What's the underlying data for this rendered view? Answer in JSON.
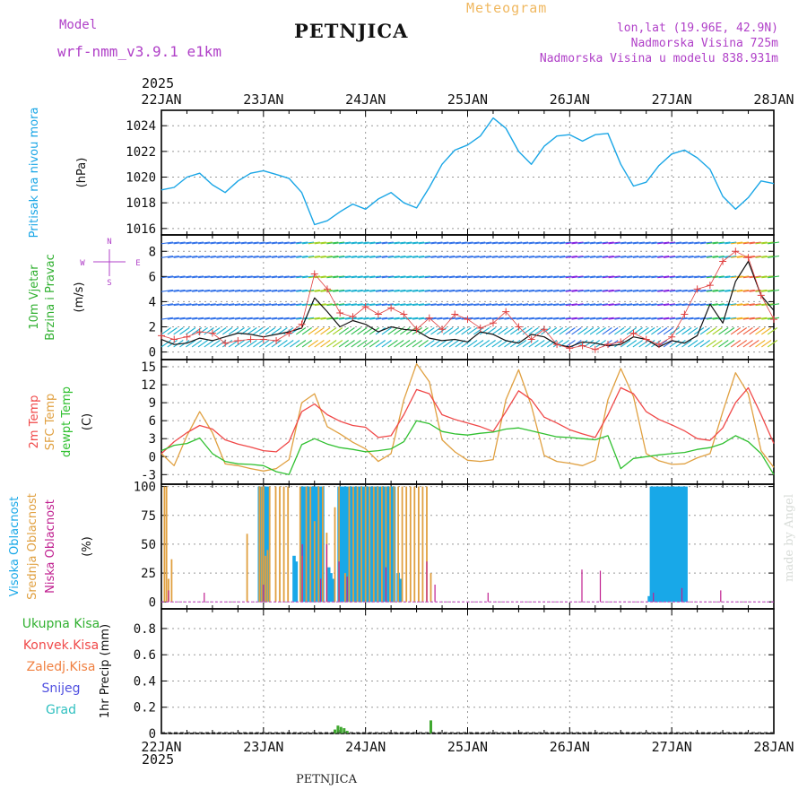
{
  "header": {
    "model_label": "Model",
    "model_name": "wrf-nmm_v3.9.1  e1km",
    "station": "PETNJICA",
    "meteogram": "Meteogram",
    "lonlat": "lon,lat (19.96E, 42.9N)",
    "altitude": "Nadmorska Visina 725m",
    "model_altitude": "Nadmorska Visina u modelu 838.931m",
    "year": "2025",
    "footer_station": "PETNJICA",
    "credit": "made by Angel"
  },
  "colors": {
    "pressure": "#1aa6e6",
    "temp2m": "#f04848",
    "sfc_temp": "#e0a040",
    "dewpoint": "#30c030",
    "high_cloud": "#18a8e8",
    "mid_cloud": "#e0a040",
    "low_cloud": "#c02090",
    "precip_total": "#40a830",
    "wind_speed": "#111111",
    "wind_obs": "#e04040"
  },
  "chart_data": [
    {
      "type": "line",
      "panel": "pressure",
      "ylabel": [
        "Pritisak na nivou mora",
        "(hPa)"
      ],
      "ylabel_colors": [
        "#1aa6e6",
        "#111111"
      ],
      "ylim": [
        1015.5,
        1025.2
      ],
      "yticks": [
        1016,
        1018,
        1020,
        1022,
        1024
      ],
      "x_days": [
        0,
        0.125,
        0.25,
        0.375,
        0.5,
        0.625,
        0.75,
        0.875,
        1.0,
        1.125,
        1.25,
        1.375,
        1.5,
        1.625,
        1.75,
        1.875,
        2.0,
        2.125,
        2.25,
        2.375,
        2.5,
        2.625,
        2.75,
        2.875,
        3.0,
        3.125,
        3.25,
        3.375,
        3.5,
        3.625,
        3.75,
        3.875,
        4.0,
        4.125,
        4.25,
        4.375,
        4.5,
        4.625,
        4.75,
        4.875,
        5.0,
        5.125,
        5.25,
        5.375,
        5.5,
        5.625,
        5.75,
        5.875,
        6.0
      ],
      "series": [
        {
          "values": [
            1019.0,
            1019.2,
            1020.0,
            1020.3,
            1019.4,
            1018.8,
            1019.7,
            1020.3,
            1020.5,
            1020.2,
            1019.9,
            1018.8,
            1016.3,
            1016.6,
            1017.3,
            1017.9,
            1017.5,
            1018.3,
            1018.8,
            1018.0,
            1017.6,
            1019.2,
            1021.0,
            1022.1,
            1022.5,
            1023.2,
            1024.6,
            1023.8,
            1022.0,
            1021.0,
            1022.4,
            1023.2,
            1023.3,
            1022.8,
            1023.3,
            1023.4,
            1021.0,
            1019.3,
            1019.6,
            1020.9,
            1021.8,
            1022.1,
            1021.5,
            1020.6,
            1018.5,
            1017.5,
            1018.4,
            1019.7,
            1019.5
          ]
        }
      ]
    },
    {
      "type": "line",
      "panel": "wind",
      "ylabel": [
        "10m Vjetar",
        "Brzina i Pravac",
        "(m/s)"
      ],
      "ylabel_colors": [
        "#30b030",
        "#30b030",
        "#111111"
      ],
      "compass": [
        "N",
        "S",
        "W",
        "E"
      ],
      "ylim": [
        -0.6,
        9.3
      ],
      "yticks": [
        0,
        2,
        4,
        6,
        8
      ],
      "x_days": [
        0,
        0.125,
        0.25,
        0.375,
        0.5,
        0.625,
        0.75,
        0.875,
        1.0,
        1.125,
        1.25,
        1.375,
        1.5,
        1.625,
        1.75,
        1.875,
        2.0,
        2.125,
        2.25,
        2.375,
        2.5,
        2.625,
        2.75,
        2.875,
        3.0,
        3.125,
        3.25,
        3.375,
        3.5,
        3.625,
        3.75,
        3.875,
        4.0,
        4.125,
        4.25,
        4.375,
        4.5,
        4.625,
        4.75,
        4.875,
        5.0,
        5.125,
        5.25,
        5.375,
        5.5,
        5.625,
        5.75,
        5.875,
        6.0
      ],
      "series": [
        {
          "name": "speed",
          "values": [
            1.0,
            0.6,
            0.7,
            1.1,
            0.9,
            1.2,
            1.5,
            1.4,
            1.2,
            1.4,
            1.6,
            1.9,
            4.3,
            3.2,
            2.0,
            2.5,
            2.2,
            1.6,
            2.0,
            1.8,
            1.7,
            1.1,
            0.9,
            1.0,
            0.8,
            1.6,
            1.4,
            0.9,
            0.7,
            1.4,
            1.2,
            0.6,
            0.4,
            0.8,
            0.7,
            0.5,
            0.6,
            1.2,
            1.0,
            0.4,
            0.9,
            0.7,
            1.3,
            3.8,
            2.3,
            5.6,
            7.2,
            4.5,
            3.3
          ]
        },
        {
          "name": "gust",
          "values": [
            1.3,
            1.0,
            1.2,
            1.6,
            1.5,
            0.7,
            0.9,
            1.0,
            1.0,
            0.9,
            1.5,
            2.2,
            6.2,
            5.0,
            3.1,
            2.8,
            3.6,
            3.0,
            3.5,
            3.0,
            1.8,
            2.7,
            1.8,
            3.0,
            2.6,
            1.9,
            2.3,
            3.2,
            2.0,
            1.0,
            1.8,
            0.6,
            0.3,
            0.5,
            0.2,
            0.6,
            0.8,
            1.5,
            1.0,
            0.6,
            1.2,
            3.0,
            5.0,
            5.3,
            7.2,
            8.0,
            7.5,
            4.5,
            2.6
          ]
        }
      ]
    },
    {
      "type": "line",
      "panel": "temperature",
      "ylabel": [
        "2m Temp",
        "SFC Temp",
        "dewpt Temp",
        "(C)"
      ],
      "ylabel_colors": [
        "#f04848",
        "#e0a040",
        "#30c030",
        "#111111"
      ],
      "ylim": [
        -4.6,
        16.2
      ],
      "yticks": [
        -3,
        0,
        3,
        6,
        9,
        12,
        15
      ],
      "x_days": [
        0,
        0.125,
        0.25,
        0.375,
        0.5,
        0.625,
        0.75,
        0.875,
        1.0,
        1.125,
        1.25,
        1.375,
        1.5,
        1.625,
        1.75,
        1.875,
        2.0,
        2.125,
        2.25,
        2.375,
        2.5,
        2.625,
        2.75,
        2.875,
        3.0,
        3.125,
        3.25,
        3.375,
        3.5,
        3.625,
        3.75,
        3.875,
        4.0,
        4.125,
        4.25,
        4.375,
        4.5,
        4.625,
        4.75,
        4.875,
        5.0,
        5.125,
        5.25,
        5.375,
        5.5,
        5.625,
        5.75,
        5.875,
        6.0
      ],
      "series": [
        {
          "name": "2m Temp",
          "values": [
            0.5,
            2.5,
            4.0,
            5.2,
            4.6,
            2.8,
            2.1,
            1.6,
            1.0,
            0.8,
            2.5,
            7.5,
            8.8,
            7.0,
            5.9,
            5.2,
            4.9,
            3.2,
            3.5,
            7.0,
            11.2,
            10.5,
            7.0,
            6.2,
            5.6,
            5.0,
            4.2,
            7.5,
            11.0,
            9.5,
            6.6,
            5.6,
            4.5,
            3.8,
            3.2,
            7.0,
            11.5,
            10.5,
            7.5,
            6.2,
            5.3,
            4.3,
            3.0,
            2.7,
            4.8,
            9.0,
            11.5,
            7.0,
            2.2
          ]
        },
        {
          "name": "SFC Temp",
          "values": [
            0.5,
            -1.5,
            3.5,
            7.5,
            4.0,
            -1.2,
            -1.5,
            -2.0,
            -2.4,
            -2.0,
            -0.5,
            9.0,
            10.5,
            5.0,
            3.8,
            2.4,
            1.3,
            -0.8,
            0.5,
            9.5,
            15.5,
            12.5,
            2.8,
            0.8,
            -0.6,
            -0.8,
            -0.5,
            9.5,
            14.5,
            8.5,
            0.2,
            -0.8,
            -1.1,
            -1.5,
            -0.6,
            9.5,
            14.7,
            10.0,
            0.5,
            -0.7,
            -1.3,
            -1.2,
            -0.2,
            0.5,
            7.5,
            14.0,
            10.5,
            1.0,
            -1.8
          ]
        },
        {
          "name": "dewpt Temp",
          "values": [
            1.0,
            1.9,
            2.2,
            3.1,
            0.5,
            -0.8,
            -1.2,
            -1.3,
            -1.5,
            -2.5,
            -3.0,
            2.0,
            3.0,
            2.1,
            1.5,
            1.2,
            0.8,
            1.0,
            1.3,
            2.5,
            6.0,
            5.5,
            4.2,
            3.8,
            3.6,
            3.9,
            4.1,
            4.6,
            4.8,
            4.3,
            3.8,
            3.3,
            3.2,
            3.0,
            2.8,
            3.5,
            -2.0,
            -0.3,
            0.0,
            0.3,
            0.5,
            0.7,
            1.2,
            1.5,
            2.2,
            3.5,
            2.5,
            0.5,
            -3.0
          ]
        }
      ]
    },
    {
      "type": "bar",
      "panel": "cloud",
      "ylabel": [
        "Visoka Oblacnost",
        "Srednja Oblacnost",
        "Niska Oblacnost",
        "(%)"
      ],
      "ylabel_colors": [
        "#18a8e8",
        "#e0a040",
        "#c02090",
        "#111111"
      ],
      "ylim": [
        -6,
        102
      ],
      "yticks": [
        0,
        25,
        50,
        75,
        100
      ],
      "series": [
        {
          "name": "Visoka Oblacnost",
          "x_days": [
            0.96,
            0.98,
            1.0,
            1.02,
            1.04,
            1.3,
            1.32,
            1.38,
            1.4,
            1.42,
            1.44,
            1.46,
            1.48,
            1.5,
            1.52,
            1.54,
            1.56,
            1.58,
            1.64,
            1.66,
            1.68,
            1.74,
            1.76,
            1.78,
            1.8,
            1.82,
            1.84,
            1.86,
            1.88,
            1.9,
            1.92,
            1.94,
            1.96,
            1.98,
            2.0,
            2.02,
            2.04,
            2.06,
            2.08,
            2.1,
            2.12,
            2.14,
            2.16,
            2.18,
            2.2,
            2.22,
            2.24,
            2.26,
            2.28,
            2.32,
            2.34,
            4.78,
            4.8,
            4.82,
            4.84,
            4.86,
            4.88,
            4.9,
            4.92,
            4.94,
            4.96,
            4.98,
            5.0,
            5.02,
            5.04,
            5.06,
            5.08,
            5.1,
            5.12,
            5.14
          ],
          "values": [
            100,
            100,
            100,
            100,
            100,
            40,
            35,
            100,
            100,
            100,
            100,
            100,
            100,
            100,
            100,
            100,
            100,
            100,
            30,
            25,
            20,
            100,
            100,
            100,
            100,
            100,
            100,
            100,
            30,
            100,
            100,
            100,
            100,
            100,
            100,
            100,
            100,
            100,
            100,
            100,
            100,
            100,
            100,
            100,
            100,
            100,
            100,
            100,
            100,
            25,
            20,
            5,
            100,
            100,
            100,
            100,
            100,
            100,
            100,
            100,
            100,
            100,
            100,
            100,
            100,
            100,
            100,
            100,
            100,
            100
          ]
        },
        {
          "name": "Srednja Oblacnost",
          "x_days": [
            0.03,
            0.05,
            0.07,
            0.1,
            0.84,
            0.96,
            0.98,
            1.0,
            1.02,
            1.04,
            1.06,
            1.12,
            1.16,
            1.2,
            1.24,
            1.36,
            1.38,
            1.42,
            1.46,
            1.5,
            1.54,
            1.58,
            1.62,
            1.7,
            1.74,
            1.8,
            1.84,
            1.88,
            1.92,
            1.96,
            2.0,
            2.04,
            2.08,
            2.12,
            2.16,
            2.2,
            2.24,
            2.28,
            2.32,
            2.36,
            2.4,
            2.44,
            2.48,
            2.52,
            2.56,
            2.6,
            2.64
          ],
          "values": [
            100,
            100,
            20,
            37,
            59,
            100,
            100,
            100,
            40,
            45,
            100,
            100,
            100,
            100,
            100,
            100,
            40,
            100,
            100,
            70,
            100,
            100,
            60,
            82,
            100,
            25,
            100,
            100,
            100,
            100,
            100,
            100,
            100,
            100,
            100,
            100,
            100,
            100,
            100,
            100,
            100,
            100,
            100,
            100,
            100,
            100,
            25
          ]
        },
        {
          "name": "Niska Oblacnost",
          "x_days": [
            0.07,
            0.42,
            1.0,
            1.38,
            1.56,
            1.62,
            1.74,
            1.82,
            2.2,
            2.6,
            2.68,
            3.2,
            4.12,
            4.3,
            4.82,
            5.1,
            5.48
          ],
          "values": [
            10,
            8,
            15,
            50,
            20,
            50,
            35,
            22,
            30,
            35,
            15,
            8,
            28,
            27,
            8,
            12,
            10
          ]
        }
      ]
    },
    {
      "type": "bar",
      "panel": "precip",
      "ylabel": [
        "1hr Precip (mm)"
      ],
      "legend": [
        "Ukupna  Kisa",
        "Konvek.Kisa",
        "Zaledj.Kisa",
        "Snijeg",
        "Grad"
      ],
      "legend_colors": [
        "#30b030",
        "#f04848",
        "#f08040",
        "#5050e0",
        "#30c0c0"
      ],
      "ylim": [
        0,
        0.95
      ],
      "yticks": [
        0,
        0.2,
        0.4,
        0.6,
        0.8
      ],
      "x_days": [
        1.7,
        1.73,
        1.76,
        1.79,
        1.82,
        2.64
      ],
      "values": [
        0.03,
        0.06,
        0.05,
        0.04,
        0.02,
        0.1
      ]
    }
  ],
  "xaxis": {
    "day_labels": [
      "22JAN",
      "23JAN",
      "24JAN",
      "25JAN",
      "26JAN",
      "27JAN",
      "28JAN"
    ]
  }
}
